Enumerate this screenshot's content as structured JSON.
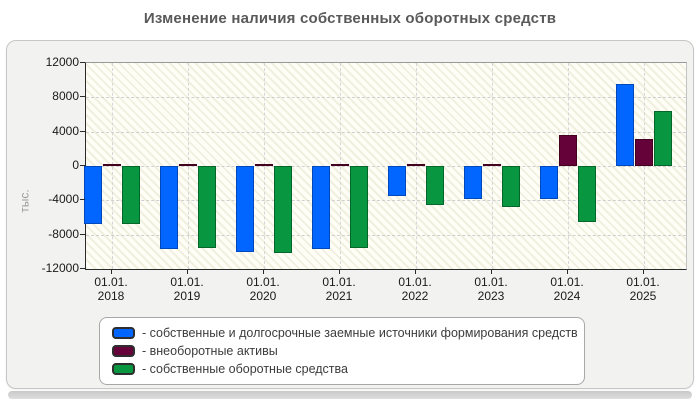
{
  "title": "Изменение наличия собственных оборотных средств",
  "chart_data": {
    "type": "bar",
    "x_tick_prefix": "01.01.",
    "categories": [
      "2018",
      "2019",
      "2020",
      "2021",
      "2022",
      "2023",
      "2024",
      "2025"
    ],
    "yticks": [
      12000,
      8000,
      4000,
      0,
      -4000,
      -8000,
      -12000
    ],
    "ylim": [
      -12000,
      12000
    ],
    "ylabel": "тыс.",
    "grid": "dashed horizontal and vertical gridlines",
    "legend_position": "bottom",
    "legend_item_prefix": "- ",
    "series": [
      {
        "name": "собственные и долгосрочные заемные источники формирования средств",
        "color": "#0066ff",
        "border_color": "#0049bd",
        "values": [
          -6700,
          -9700,
          -10000,
          -9700,
          -3500,
          -3800,
          -3800,
          9500
        ]
      },
      {
        "name": "внеоборотные активы",
        "color": "#65023a",
        "border_color": "#44001f",
        "values": [
          200,
          200,
          200,
          200,
          200,
          200,
          3600,
          3100
        ]
      },
      {
        "name": "собственные оборотные средства",
        "color": "#089740",
        "border_color": "#04662a",
        "values": [
          -6700,
          -9500,
          -10100,
          -9600,
          -4600,
          -4800,
          -6500,
          6400
        ]
      }
    ]
  }
}
